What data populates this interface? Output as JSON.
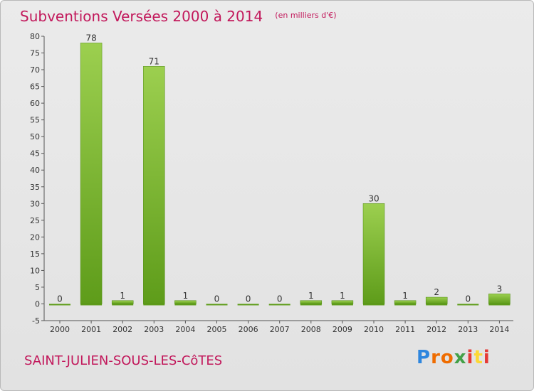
{
  "header": {
    "title": "Subventions Versées 2000 à 2014",
    "subtitle": "(en milliers d'€)"
  },
  "footer": {
    "commune": "SAINT-JULIEN-SOUS-LES-CôTES",
    "logo_letters": [
      "P",
      "r",
      "o",
      "x",
      "i",
      "t",
      "i"
    ]
  },
  "colors": {
    "bar_top": "#9ccf4f",
    "bar_bottom": "#5e9c1a",
    "title": "#c2185b"
  },
  "chart_data": {
    "type": "bar",
    "title": "Subventions Versées 2000 à 2014",
    "subtitle": "(en milliers d'€)",
    "categories": [
      "2000",
      "2001",
      "2002",
      "2003",
      "2004",
      "2005",
      "2006",
      "2007",
      "2008",
      "2009",
      "2010",
      "2011",
      "2012",
      "2013",
      "2014"
    ],
    "values": [
      0,
      78,
      1,
      71,
      1,
      0,
      0,
      0,
      1,
      1,
      30,
      1,
      2,
      0,
      3
    ],
    "ylim": [
      -5,
      80
    ],
    "yticks": [
      -5,
      0,
      5,
      10,
      15,
      20,
      25,
      30,
      35,
      40,
      45,
      50,
      55,
      60,
      65,
      70,
      75,
      80
    ],
    "grid": false,
    "legend": "none"
  }
}
